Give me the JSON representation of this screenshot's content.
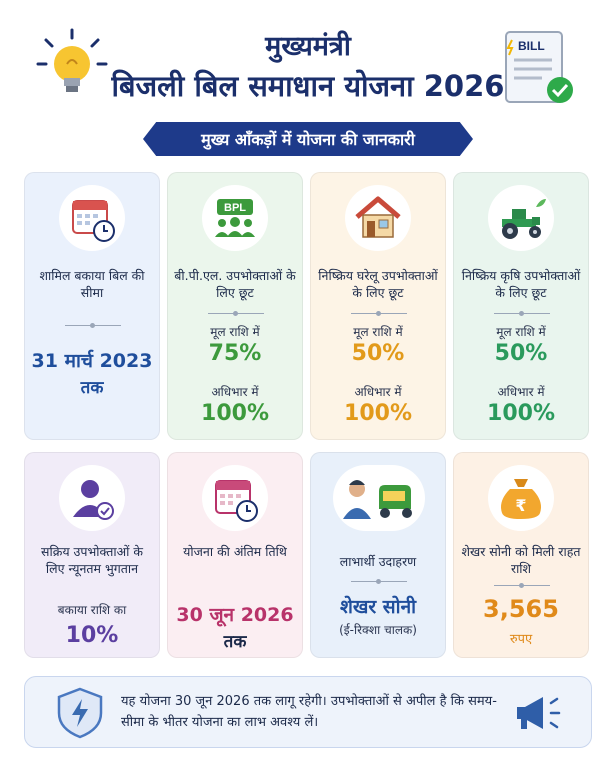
{
  "header": {
    "title_line1": "मुख्यमंत्री",
    "title_line2": "बिजली बिल समाधान योजना 2026",
    "bill_icon_text": "BILL"
  },
  "banner": {
    "text": "मुख्य आँकड़ों में योजना की जानकारी"
  },
  "cards": {
    "c1": {
      "icon": "calendar-clock-icon",
      "label": "शामिल बकाया बिल की सीमा",
      "value": "31 मार्च 2023",
      "suffix": "तक"
    },
    "c2": {
      "icon": "bpl-group-icon",
      "icon_text": "BPL",
      "label": "बी.पी.एल. उपभोक्ताओं के लिए छूट",
      "line1": "मूल राशि में",
      "value1": "75%",
      "line2": "अधिभार में",
      "value2": "100%"
    },
    "c3": {
      "icon": "house-icon",
      "label": "निष्क्रिय घरेलू उपभोक्ताओं के लिए छूट",
      "line1": "मूल राशि में",
      "value1": "50%",
      "line2": "अधिभार में",
      "value2": "100%"
    },
    "c4": {
      "icon": "tractor-icon",
      "label": "निष्क्रिय कृषि उपभोक्ताओं के लिए छूट",
      "line1": "मूल राशि में",
      "value1": "50%",
      "line2": "अधिभार में",
      "value2": "100%"
    },
    "c5": {
      "icon": "user-check-icon",
      "label": "सक्रिय उपभोक्ताओं के लिए न्यूनतम भुगतान",
      "line1": "बकाया राशि का",
      "value1": "10%"
    },
    "c6": {
      "icon": "calendar-clock-icon",
      "label": "योजना की अंतिम तिथि",
      "value": "30 जून 2026",
      "suffix": "तक"
    },
    "c7": {
      "icon": "man-rickshaw-icon",
      "label": "लाभार्थी उदाहरण",
      "value": "शेखर सोनी",
      "suffix": "(ई-रिक्शा चालक)"
    },
    "c8": {
      "icon": "rupee-bag-icon",
      "label": "शेखर सोनी को मिली राहत राशि",
      "value": "3,565",
      "suffix": "रुपए"
    }
  },
  "footer": {
    "text": "यह योजना 30 जून 2026 तक लागू रहेगी। उपभोक्ताओं से अपील है कि समय-सीमा के भीतर योजना का लाभ अवश्य लें।"
  },
  "colors": {
    "navy": "#1b2f6b",
    "blue_value": "#1f4e9c",
    "green_value": "#3c9a3c",
    "orange_value": "#e29a1a",
    "teal_value": "#2a9a5c",
    "purple_value": "#5b3fa0",
    "pink_value": "#b8336a",
    "sky_value": "#1f4e9c",
    "peach_value": "#e08a1a"
  }
}
